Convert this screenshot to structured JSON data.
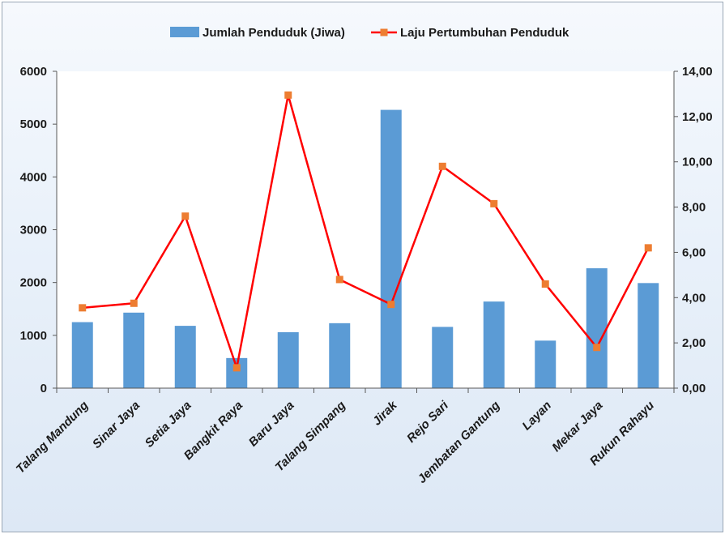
{
  "chart_data": {
    "type": "bar",
    "categories": [
      "Talang Mandung",
      "Sinar Jaya",
      "Setia Jaya",
      "Bangkit Raya",
      "Baru Jaya",
      "Talang Simpang",
      "Jirak",
      "Rejo Sari",
      "Jembatan Gantung",
      "Layan",
      "Mekar Jaya",
      "Rukun Rahayu"
    ],
    "series": [
      {
        "name": "Jumlah Penduduk (Jiwa)",
        "type": "bar",
        "axis": "left",
        "color": "#5b9bd5",
        "values": [
          1250,
          1430,
          1180,
          570,
          1060,
          1230,
          5270,
          1160,
          1640,
          900,
          2270,
          1990
        ]
      },
      {
        "name": "Laju Pertumbuhan Penduduk",
        "type": "line",
        "axis": "right",
        "color": "#ff0000",
        "marker_color": "#ed7d31",
        "values": [
          3.55,
          3.75,
          7.6,
          0.9,
          12.95,
          4.8,
          3.7,
          9.8,
          8.15,
          4.6,
          1.8,
          6.2
        ]
      }
    ],
    "y_left": {
      "min": 0,
      "max": 6000,
      "ticks": [
        "0",
        "1000",
        "2000",
        "3000",
        "4000",
        "5000",
        "6000"
      ]
    },
    "y_right": {
      "min": 0,
      "max": 14,
      "ticks": [
        "0,00",
        "2,00",
        "4,00",
        "6,00",
        "8,00",
        "10,00",
        "12,00",
        "14,00"
      ]
    },
    "grid": false,
    "legend_position": "top"
  }
}
